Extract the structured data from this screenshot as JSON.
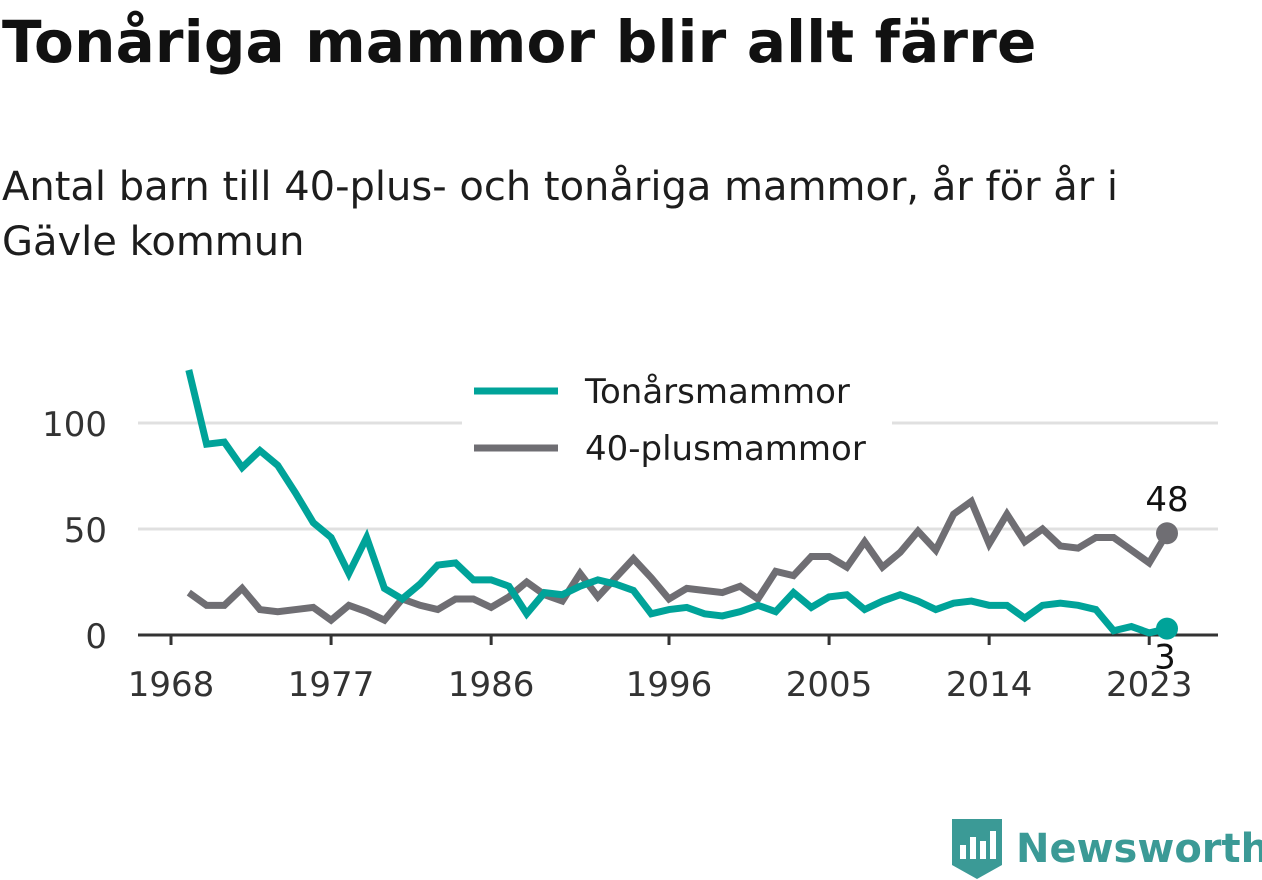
{
  "header": {
    "title": "Tonåriga mammor blir allt färre",
    "subtitle": "Antal barn till 40-plus- och tonåriga mammor, år för år i Gävle kommun"
  },
  "brand": {
    "name": "Newsworthy",
    "icon": "newsworthy-logo-icon",
    "color": "#3b9a96"
  },
  "chart_data": {
    "type": "line",
    "x": [
      1969,
      1970,
      1971,
      1972,
      1973,
      1974,
      1975,
      1976,
      1977,
      1978,
      1979,
      1980,
      1981,
      1982,
      1983,
      1984,
      1985,
      1986,
      1987,
      1988,
      1989,
      1990,
      1991,
      1992,
      1993,
      1994,
      1995,
      1996,
      1997,
      1998,
      1999,
      2000,
      2001,
      2002,
      2003,
      2004,
      2005,
      2006,
      2007,
      2008,
      2009,
      2010,
      2011,
      2012,
      2013,
      2014,
      2015,
      2016,
      2017,
      2018,
      2019,
      2020,
      2021,
      2022,
      2023,
      2024
    ],
    "series": [
      {
        "name": "Tonårsmammor",
        "color": "#00a399",
        "values": [
          125,
          90,
          91,
          79,
          87,
          80,
          67,
          53,
          46,
          29,
          46,
          22,
          17,
          24,
          33,
          34,
          26,
          26,
          23,
          10,
          20,
          19,
          23,
          26,
          24,
          21,
          10,
          12,
          13,
          10,
          9,
          11,
          14,
          11,
          20,
          13,
          18,
          19,
          12,
          16,
          19,
          16,
          12,
          15,
          16,
          14,
          14,
          8,
          14,
          15,
          14,
          12,
          2,
          4,
          1,
          3
        ]
      },
      {
        "name": "40-plusmammor",
        "color": "#6f6e73",
        "values": [
          20,
          14,
          14,
          22,
          12,
          11,
          12,
          13,
          7,
          14,
          11,
          7,
          17,
          14,
          12,
          17,
          17,
          13,
          18,
          25,
          19,
          16,
          29,
          18,
          27,
          36,
          27,
          17,
          22,
          21,
          20,
          23,
          17,
          30,
          28,
          37,
          37,
          32,
          44,
          32,
          39,
          49,
          40,
          57,
          63,
          43,
          57,
          44,
          50,
          42,
          41,
          46,
          46,
          40,
          34,
          48
        ]
      }
    ],
    "x_ticks": [
      "1968",
      "1977",
      "1986",
      "1996",
      "2005",
      "2014",
      "2023"
    ],
    "x_tick_values": [
      1968,
      1977,
      1986,
      1996,
      2005,
      2014,
      2023
    ],
    "y_ticks": [
      "0",
      "50",
      "100"
    ],
    "y_tick_values": [
      0,
      50,
      100
    ],
    "ylim": [
      0,
      125
    ],
    "xlim": [
      1968,
      2026
    ],
    "grid": "horizontal",
    "legend_position": "top-center",
    "end_labels": {
      "Tonårsmammor": "3",
      "40-plusmammor": "48"
    }
  }
}
